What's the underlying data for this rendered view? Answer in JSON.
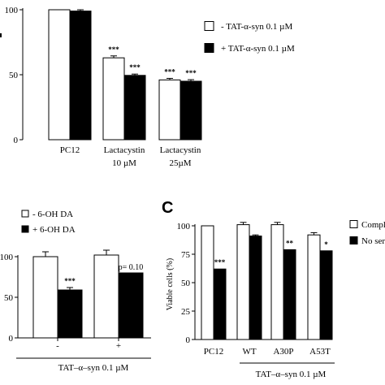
{
  "chart_data": [
    {
      "type": "bar",
      "panel": "",
      "categories": [
        "PC12",
        "Lactacystin 10 µM",
        "Lactacystin 25µM"
      ],
      "category_lines": [
        [
          "PC12"
        ],
        [
          "Lactacystin",
          "10 µM"
        ],
        [
          "Lactacystin",
          "25µM"
        ]
      ],
      "series": [
        {
          "name": "- TAT-α-syn 0.1 µM",
          "fill": "#ffffff",
          "values": [
            100,
            63,
            46
          ],
          "errors": [
            0,
            1.5,
            1.2
          ],
          "annotations": [
            "",
            "***",
            "***"
          ]
        },
        {
          "name": "+ TAT-α-syn 0.1 µM",
          "fill": "#000000",
          "values": [
            99,
            49.5,
            45
          ],
          "errors": [
            1.0,
            1.0,
            1.2
          ],
          "annotations": [
            "",
            "***",
            "***"
          ]
        }
      ],
      "yticks": [
        "0",
        "50",
        "100"
      ],
      "ylim": [
        0,
        100
      ],
      "xlabel": "",
      "ylabel": "",
      "legend_position": "right"
    },
    {
      "type": "bar",
      "panel": "",
      "categories": [
        "-",
        "+"
      ],
      "category_lines": [
        [
          "-"
        ],
        [
          "+"
        ]
      ],
      "series": [
        {
          "name": "- 6-OH DA",
          "fill": "#ffffff",
          "values": [
            100,
            102
          ],
          "errors": [
            6,
            6
          ],
          "annotations": [
            "",
            ""
          ]
        },
        {
          "name": "+ 6-OH DA",
          "fill": "#000000",
          "values": [
            59,
            80
          ],
          "errors": [
            3,
            0
          ],
          "annotations": [
            "***",
            "p= 0.10"
          ]
        }
      ],
      "yticks": [
        "0",
        "50",
        "100"
      ],
      "ylim": [
        0,
        100
      ],
      "xlabel": "TAT–α–syn  0.1 µM",
      "ylabel": "",
      "legend_position": "top-left"
    },
    {
      "type": "bar",
      "panel": "C",
      "categories": [
        "PC12",
        "WT",
        "A30P",
        "A53T"
      ],
      "category_lines": [
        [
          "PC12"
        ],
        [
          "WT"
        ],
        [
          "A30P"
        ],
        [
          "A53T"
        ]
      ],
      "series": [
        {
          "name": "Compl",
          "fill": "#ffffff",
          "values": [
            100,
            101,
            101,
            92
          ],
          "errors": [
            0,
            2,
            2,
            2
          ],
          "annotations": [
            "",
            "",
            "",
            ""
          ]
        },
        {
          "name": "No seru",
          "fill": "#000000",
          "values": [
            62,
            91,
            79,
            78
          ],
          "errors": [
            0,
            1,
            0,
            0
          ],
          "annotations": [
            "***",
            "",
            "**",
            "*"
          ]
        }
      ],
      "yticks": [
        "0",
        "25",
        "50",
        "75",
        "100"
      ],
      "ylim": [
        0,
        100
      ],
      "xlabel": "TAT–α–syn  0.1 µM",
      "ylabel": "Viable cells (%)",
      "legend_position": "right"
    }
  ]
}
